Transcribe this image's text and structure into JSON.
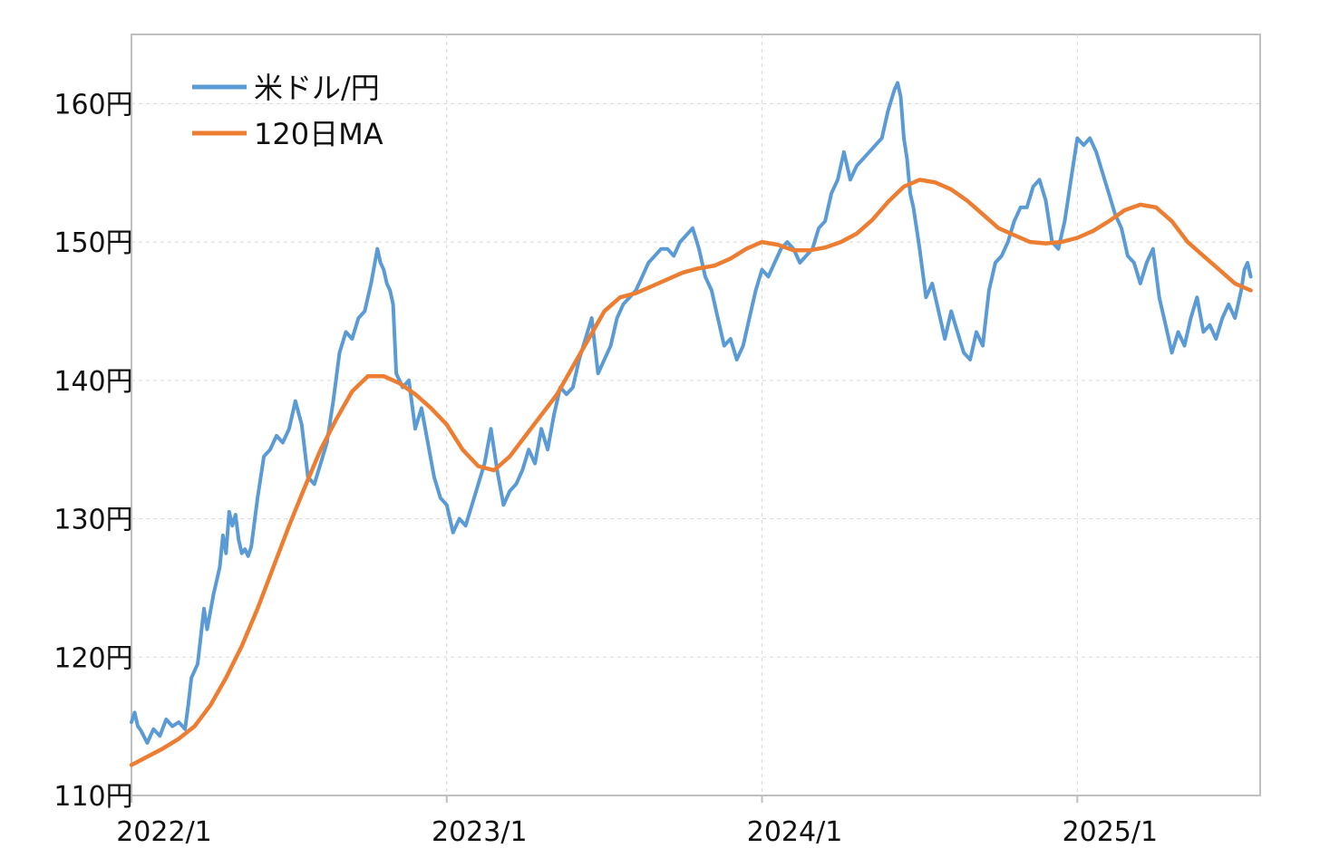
{
  "chart_data": {
    "type": "line",
    "title": "",
    "xlabel": "",
    "ylabel": "",
    "xlim": [
      "2022/1",
      "2025/7"
    ],
    "ylim": [
      110,
      165
    ],
    "grid": true,
    "legend": "top-left",
    "y_ticks": [
      {
        "value": 160,
        "label": "160円"
      },
      {
        "value": 150,
        "label": "150円"
      },
      {
        "value": 140,
        "label": "140円"
      },
      {
        "value": 130,
        "label": "130円"
      },
      {
        "value": 120,
        "label": "120円"
      },
      {
        "value": 110,
        "label": "110円"
      }
    ],
    "x_ticks": [
      {
        "value": 2022.0,
        "label": "2022/1"
      },
      {
        "value": 2023.0,
        "label": "2023/1"
      },
      {
        "value": 2024.0,
        "label": "2024/1"
      },
      {
        "value": 2025.0,
        "label": "2025/1"
      }
    ],
    "series": [
      {
        "name": "米ドル/円",
        "color": "#5B9BD5",
        "points": [
          [
            2022.0,
            115.3
          ],
          [
            2022.01,
            116.0
          ],
          [
            2022.02,
            115.0
          ],
          [
            2022.03,
            114.7
          ],
          [
            2022.05,
            113.8
          ],
          [
            2022.07,
            114.8
          ],
          [
            2022.09,
            114.3
          ],
          [
            2022.11,
            115.5
          ],
          [
            2022.13,
            115.0
          ],
          [
            2022.15,
            115.3
          ],
          [
            2022.17,
            114.8
          ],
          [
            2022.18,
            116.5
          ],
          [
            2022.19,
            118.5
          ],
          [
            2022.21,
            119.5
          ],
          [
            2022.22,
            121.5
          ],
          [
            2022.23,
            123.5
          ],
          [
            2022.24,
            122.0
          ],
          [
            2022.26,
            124.5
          ],
          [
            2022.27,
            125.5
          ],
          [
            2022.28,
            126.5
          ],
          [
            2022.29,
            128.8
          ],
          [
            2022.3,
            127.5
          ],
          [
            2022.31,
            130.5
          ],
          [
            2022.32,
            129.5
          ],
          [
            2022.33,
            130.3
          ],
          [
            2022.34,
            128.5
          ],
          [
            2022.35,
            127.5
          ],
          [
            2022.36,
            127.8
          ],
          [
            2022.37,
            127.3
          ],
          [
            2022.38,
            128.0
          ],
          [
            2022.4,
            131.5
          ],
          [
            2022.42,
            134.5
          ],
          [
            2022.44,
            135.0
          ],
          [
            2022.46,
            136.0
          ],
          [
            2022.48,
            135.5
          ],
          [
            2022.5,
            136.5
          ],
          [
            2022.52,
            138.5
          ],
          [
            2022.54,
            136.8
          ],
          [
            2022.56,
            133.0
          ],
          [
            2022.58,
            132.5
          ],
          [
            2022.6,
            134.0
          ],
          [
            2022.62,
            135.5
          ],
          [
            2022.64,
            138.5
          ],
          [
            2022.66,
            142.0
          ],
          [
            2022.68,
            143.5
          ],
          [
            2022.7,
            143.0
          ],
          [
            2022.72,
            144.5
          ],
          [
            2022.74,
            145.0
          ],
          [
            2022.76,
            147.0
          ],
          [
            2022.78,
            149.5
          ],
          [
            2022.79,
            148.5
          ],
          [
            2022.8,
            148.0
          ],
          [
            2022.81,
            147.0
          ],
          [
            2022.82,
            146.5
          ],
          [
            2022.83,
            145.5
          ],
          [
            2022.84,
            140.5
          ],
          [
            2022.86,
            139.5
          ],
          [
            2022.88,
            140.0
          ],
          [
            2022.9,
            136.5
          ],
          [
            2022.92,
            138.0
          ],
          [
            2022.94,
            135.5
          ],
          [
            2022.96,
            133.0
          ],
          [
            2022.98,
            131.5
          ],
          [
            2023.0,
            131.0
          ],
          [
            2023.02,
            129.0
          ],
          [
            2023.04,
            130.0
          ],
          [
            2023.06,
            129.5
          ],
          [
            2023.08,
            131.0
          ],
          [
            2023.1,
            132.5
          ],
          [
            2023.12,
            134.0
          ],
          [
            2023.14,
            136.5
          ],
          [
            2023.16,
            133.5
          ],
          [
            2023.18,
            131.0
          ],
          [
            2023.2,
            132.0
          ],
          [
            2023.22,
            132.5
          ],
          [
            2023.24,
            133.5
          ],
          [
            2023.26,
            135.0
          ],
          [
            2023.28,
            134.0
          ],
          [
            2023.3,
            136.5
          ],
          [
            2023.32,
            135.0
          ],
          [
            2023.34,
            137.5
          ],
          [
            2023.36,
            139.5
          ],
          [
            2023.38,
            139.0
          ],
          [
            2023.4,
            139.5
          ],
          [
            2023.42,
            141.5
          ],
          [
            2023.44,
            143.0
          ],
          [
            2023.46,
            144.5
          ],
          [
            2023.48,
            140.5
          ],
          [
            2023.5,
            141.5
          ],
          [
            2023.52,
            142.5
          ],
          [
            2023.54,
            144.5
          ],
          [
            2023.56,
            145.5
          ],
          [
            2023.58,
            146.0
          ],
          [
            2023.6,
            146.5
          ],
          [
            2023.62,
            147.5
          ],
          [
            2023.64,
            148.5
          ],
          [
            2023.66,
            149.0
          ],
          [
            2023.68,
            149.5
          ],
          [
            2023.7,
            149.5
          ],
          [
            2023.72,
            149.0
          ],
          [
            2023.74,
            150.0
          ],
          [
            2023.76,
            150.5
          ],
          [
            2023.78,
            151.0
          ],
          [
            2023.8,
            149.5
          ],
          [
            2023.82,
            147.5
          ],
          [
            2023.84,
            146.5
          ],
          [
            2023.86,
            144.5
          ],
          [
            2023.88,
            142.5
          ],
          [
            2023.9,
            143.0
          ],
          [
            2023.92,
            141.5
          ],
          [
            2023.94,
            142.5
          ],
          [
            2023.96,
            144.5
          ],
          [
            2023.98,
            146.5
          ],
          [
            2024.0,
            148.0
          ],
          [
            2024.02,
            147.5
          ],
          [
            2024.04,
            148.5
          ],
          [
            2024.06,
            149.5
          ],
          [
            2024.08,
            150.0
          ],
          [
            2024.1,
            149.5
          ],
          [
            2024.12,
            148.5
          ],
          [
            2024.14,
            149.0
          ],
          [
            2024.16,
            149.5
          ],
          [
            2024.18,
            151.0
          ],
          [
            2024.2,
            151.5
          ],
          [
            2024.22,
            153.5
          ],
          [
            2024.24,
            154.5
          ],
          [
            2024.26,
            156.5
          ],
          [
            2024.28,
            154.5
          ],
          [
            2024.3,
            155.5
          ],
          [
            2024.32,
            156.0
          ],
          [
            2024.34,
            156.5
          ],
          [
            2024.36,
            157.0
          ],
          [
            2024.38,
            157.5
          ],
          [
            2024.4,
            159.5
          ],
          [
            2024.42,
            161.0
          ],
          [
            2024.43,
            161.5
          ],
          [
            2024.44,
            160.5
          ],
          [
            2024.45,
            157.5
          ],
          [
            2024.46,
            156.0
          ],
          [
            2024.47,
            153.5
          ],
          [
            2024.48,
            152.5
          ],
          [
            2024.5,
            149.5
          ],
          [
            2024.52,
            146.0
          ],
          [
            2024.54,
            147.0
          ],
          [
            2024.56,
            145.0
          ],
          [
            2024.58,
            143.0
          ],
          [
            2024.6,
            145.0
          ],
          [
            2024.62,
            143.5
          ],
          [
            2024.64,
            142.0
          ],
          [
            2024.66,
            141.5
          ],
          [
            2024.68,
            143.5
          ],
          [
            2024.7,
            142.5
          ],
          [
            2024.72,
            146.5
          ],
          [
            2024.74,
            148.5
          ],
          [
            2024.76,
            149.0
          ],
          [
            2024.78,
            150.0
          ],
          [
            2024.8,
            151.5
          ],
          [
            2024.82,
            152.5
          ],
          [
            2024.84,
            152.5
          ],
          [
            2024.86,
            154.0
          ],
          [
            2024.88,
            154.5
          ],
          [
            2024.9,
            153.0
          ],
          [
            2024.92,
            150.0
          ],
          [
            2024.94,
            149.5
          ],
          [
            2024.96,
            151.5
          ],
          [
            2024.98,
            154.5
          ],
          [
            2025.0,
            157.5
          ],
          [
            2025.02,
            157.0
          ],
          [
            2025.04,
            157.5
          ],
          [
            2025.06,
            156.5
          ],
          [
            2025.08,
            155.0
          ],
          [
            2025.1,
            153.5
          ],
          [
            2025.12,
            152.0
          ],
          [
            2025.14,
            151.0
          ],
          [
            2025.16,
            149.0
          ],
          [
            2025.18,
            148.5
          ],
          [
            2025.2,
            147.0
          ],
          [
            2025.22,
            148.5
          ],
          [
            2025.24,
            149.5
          ],
          [
            2025.26,
            146.0
          ],
          [
            2025.28,
            144.0
          ],
          [
            2025.3,
            142.0
          ],
          [
            2025.32,
            143.5
          ],
          [
            2025.34,
            142.5
          ],
          [
            2025.36,
            144.5
          ],
          [
            2025.38,
            146.0
          ],
          [
            2025.4,
            143.5
          ],
          [
            2025.42,
            144.0
          ],
          [
            2025.44,
            143.0
          ],
          [
            2025.46,
            144.5
          ],
          [
            2025.48,
            145.5
          ],
          [
            2025.5,
            144.5
          ],
          [
            2025.52,
            146.5
          ],
          [
            2025.53,
            148.0
          ],
          [
            2025.54,
            148.5
          ],
          [
            2025.55,
            147.5
          ]
        ]
      },
      {
        "name": "120日MA",
        "color": "#ED7D31",
        "points": [
          [
            2022.0,
            112.2
          ],
          [
            2022.05,
            112.8
          ],
          [
            2022.1,
            113.4
          ],
          [
            2022.15,
            114.1
          ],
          [
            2022.2,
            115.0
          ],
          [
            2022.25,
            116.5
          ],
          [
            2022.3,
            118.5
          ],
          [
            2022.35,
            120.8
          ],
          [
            2022.4,
            123.5
          ],
          [
            2022.45,
            126.5
          ],
          [
            2022.5,
            129.5
          ],
          [
            2022.55,
            132.3
          ],
          [
            2022.6,
            135.0
          ],
          [
            2022.65,
            137.2
          ],
          [
            2022.7,
            139.2
          ],
          [
            2022.75,
            140.3
          ],
          [
            2022.8,
            140.3
          ],
          [
            2022.85,
            139.8
          ],
          [
            2022.9,
            139.0
          ],
          [
            2022.95,
            138.0
          ],
          [
            2023.0,
            136.8
          ],
          [
            2023.05,
            135.0
          ],
          [
            2023.1,
            133.8
          ],
          [
            2023.15,
            133.5
          ],
          [
            2023.2,
            134.5
          ],
          [
            2023.25,
            136.0
          ],
          [
            2023.3,
            137.5
          ],
          [
            2023.35,
            139.0
          ],
          [
            2023.4,
            141.0
          ],
          [
            2023.45,
            143.0
          ],
          [
            2023.5,
            145.0
          ],
          [
            2023.55,
            146.0
          ],
          [
            2023.6,
            146.3
          ],
          [
            2023.65,
            146.8
          ],
          [
            2023.7,
            147.3
          ],
          [
            2023.75,
            147.8
          ],
          [
            2023.8,
            148.1
          ],
          [
            2023.85,
            148.3
          ],
          [
            2023.9,
            148.8
          ],
          [
            2023.95,
            149.5
          ],
          [
            2024.0,
            150.0
          ],
          [
            2024.05,
            149.8
          ],
          [
            2024.1,
            149.4
          ],
          [
            2024.15,
            149.4
          ],
          [
            2024.2,
            149.6
          ],
          [
            2024.25,
            150.0
          ],
          [
            2024.3,
            150.6
          ],
          [
            2024.35,
            151.6
          ],
          [
            2024.4,
            152.9
          ],
          [
            2024.45,
            154.0
          ],
          [
            2024.5,
            154.5
          ],
          [
            2024.55,
            154.3
          ],
          [
            2024.6,
            153.8
          ],
          [
            2024.65,
            153.0
          ],
          [
            2024.7,
            152.0
          ],
          [
            2024.75,
            151.0
          ],
          [
            2024.8,
            150.5
          ],
          [
            2024.85,
            150.0
          ],
          [
            2024.9,
            149.9
          ],
          [
            2024.95,
            150.0
          ],
          [
            2025.0,
            150.3
          ],
          [
            2025.05,
            150.8
          ],
          [
            2025.1,
            151.5
          ],
          [
            2025.15,
            152.3
          ],
          [
            2025.2,
            152.7
          ],
          [
            2025.25,
            152.5
          ],
          [
            2025.3,
            151.5
          ],
          [
            2025.35,
            150.0
          ],
          [
            2025.4,
            149.0
          ],
          [
            2025.45,
            148.0
          ],
          [
            2025.5,
            147.0
          ],
          [
            2025.55,
            146.5
          ]
        ]
      }
    ]
  }
}
